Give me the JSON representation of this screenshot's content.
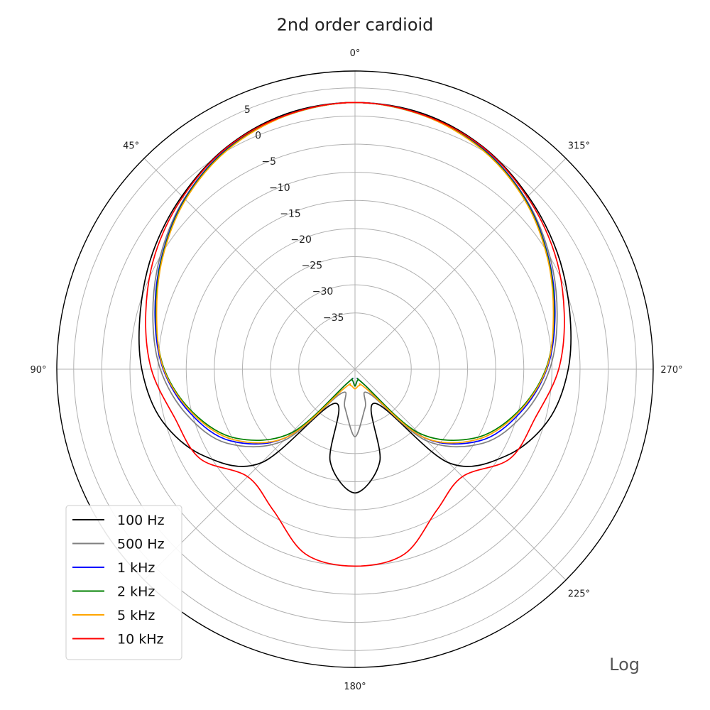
{
  "chart_data": {
    "type": "line",
    "polar": true,
    "title": "2nd order cardioid",
    "radial_axis": {
      "range_db": [
        -45,
        8
      ],
      "ticks": [
        5,
        0,
        -5,
        -10,
        -15,
        -20,
        -25,
        -30,
        -35
      ],
      "tick_labels": [
        "5",
        "0",
        "−5",
        "−10",
        "−15",
        "−20",
        "−25",
        "−30",
        "−35"
      ]
    },
    "angular_axis": {
      "direction": "counterclockwise",
      "zero_location": "top",
      "ticks": [
        0,
        45,
        90,
        180,
        225,
        270,
        315
      ],
      "tick_labels": [
        "0°",
        "45°",
        "90°",
        "180°",
        "225°",
        "270°",
        "315°"
      ]
    },
    "grid": true,
    "scale_note": "Log",
    "legend": {
      "placement": "bottom-left",
      "entries": [
        "100 Hz",
        "500 Hz",
        "1 kHz",
        "2 kHz",
        "5 kHz",
        "10 kHz"
      ]
    },
    "angles_deg": [
      0,
      15,
      30,
      45,
      60,
      75,
      90,
      105,
      120,
      135,
      150,
      165,
      180
    ],
    "series": [
      {
        "name": "100 Hz",
        "color": "#000000",
        "values_db": [
          2.4,
          2.0,
          0.6,
          -1.5,
          -3.5,
          -5.5,
          -7.1,
          -9.5,
          -14.1,
          -21.5,
          -38.0,
          -28.0,
          -23.0
        ]
      },
      {
        "name": "500 Hz",
        "color": "#808080",
        "values_db": [
          2.4,
          1.8,
          0.3,
          -2.1,
          -5.0,
          -7.8,
          -10.4,
          -14.0,
          -18.7,
          -27.0,
          -40.0,
          -38.0,
          -33.0
        ]
      },
      {
        "name": "1 kHz",
        "color": "#0000ff",
        "values_db": [
          2.4,
          1.8,
          0.3,
          -2.2,
          -5.3,
          -8.2,
          -10.9,
          -14.7,
          -19.5,
          -28.0,
          -42.0,
          -43.0,
          -42.0
        ]
      },
      {
        "name": "2 kHz",
        "color": "#008000",
        "values_db": [
          2.4,
          1.7,
          0.2,
          -2.3,
          -5.4,
          -8.4,
          -11.1,
          -15.2,
          -20.5,
          -29.0,
          -42.0,
          -43.0,
          -42.0
        ]
      },
      {
        "name": "5 kHz",
        "color": "#ffa500",
        "values_db": [
          2.4,
          1.7,
          0.1,
          -2.4,
          -5.5,
          -8.5,
          -11.0,
          -15.0,
          -20.0,
          -28.0,
          -41.0,
          -42.0,
          -41.5
        ]
      },
      {
        "name": "10 kHz",
        "color": "#ff0000",
        "values_db": [
          2.4,
          1.8,
          0.5,
          -1.7,
          -4.0,
          -6.5,
          -8.8,
          -11.8,
          -13.2,
          -18.0,
          -16.0,
          -11.0,
          -10.0
        ]
      }
    ]
  }
}
